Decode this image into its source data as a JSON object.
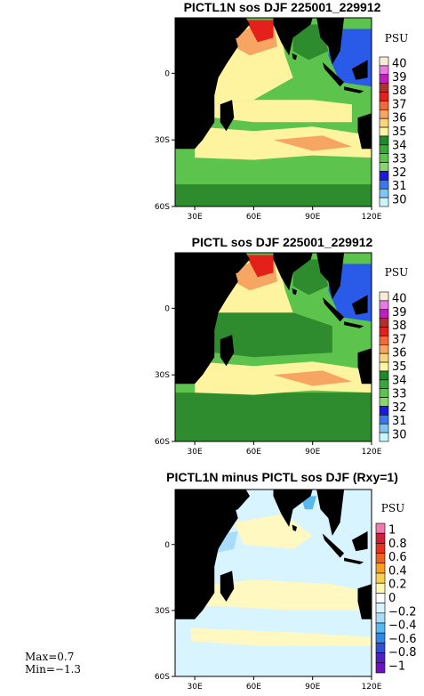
{
  "chart_data": [
    {
      "type": "heatmap",
      "title": "PICTL1N sos DJF 225001_229912",
      "unit": "PSU",
      "x_ticks": [
        "30E",
        "60E",
        "90E",
        "120E"
      ],
      "y_ticks": [
        "0",
        "30S",
        "60S"
      ],
      "colorbar_labels": [
        "40",
        "39",
        "38",
        "37",
        "36",
        "35",
        "34",
        "33",
        "32",
        "31",
        "30"
      ],
      "colorbar_colors": [
        "#f7ecd6",
        "#e87be0",
        "#c01fc0",
        "#b03030",
        "#e4201a",
        "#f06a3a",
        "#f7a562",
        "#fbd57d",
        "#fff6a4",
        "#1e8b28",
        "#38a83a",
        "#5cc44c",
        "#86d86a",
        "#1b1be0",
        "#3a78f0",
        "#7ec6f5",
        "#c9f5ff"
      ],
      "colors": {
        "land": "#000000",
        "fresh_band": "#2e8b2e",
        "mid": "#5cc44c",
        "salty": "#fef4a0",
        "high": "#f7a562",
        "max": "#e4201a"
      }
    },
    {
      "type": "heatmap",
      "title": "PICTL sos DJF 225001_229912",
      "unit": "PSU",
      "x_ticks": [
        "30E",
        "60E",
        "90E",
        "120E"
      ],
      "y_ticks": [
        "0",
        "30S",
        "60S"
      ],
      "colorbar_labels": [
        "40",
        "39",
        "38",
        "37",
        "36",
        "35",
        "34",
        "33",
        "32",
        "31",
        "30"
      ],
      "colorbar_colors": [
        "#f7ecd6",
        "#e87be0",
        "#c01fc0",
        "#b03030",
        "#e4201a",
        "#f06a3a",
        "#f7a562",
        "#fbd57d",
        "#fff6a4",
        "#1e8b28",
        "#38a83a",
        "#5cc44c",
        "#86d86a",
        "#1b1be0",
        "#3a78f0",
        "#7ec6f5",
        "#c9f5ff"
      ],
      "colors": {
        "land": "#000000",
        "fresh_band": "#2e8b2e",
        "mid": "#5cc44c",
        "salty": "#fef4a0",
        "high": "#f7a562",
        "max": "#e4201a"
      }
    },
    {
      "type": "heatmap",
      "title": "PICTL1N minus PICTL sos DJF (Rxy=1)",
      "unit": "PSU",
      "x_ticks": [
        "30E",
        "60E",
        "90E",
        "120E"
      ],
      "y_ticks": [
        "0",
        "30S",
        "60S"
      ],
      "colorbar_labels": [
        "1",
        "0.8",
        "0.6",
        "0.4",
        "0.2",
        "0",
        "−0.2",
        "−0.4",
        "−0.6",
        "−0.8",
        "−1"
      ],
      "colorbar_colors": [
        "#f07ab0",
        "#d0203a",
        "#e8301e",
        "#f0601e",
        "#f8a020",
        "#fbd050",
        "#fff8b0",
        "#ffffff",
        "#d8f4ff",
        "#a8dcf8",
        "#58b8f0",
        "#2e88e8",
        "#3050d8",
        "#5020c0",
        "#7010c0"
      ],
      "colors": {
        "land": "#000000",
        "zero": "#fff8c0",
        "neg_small": "#d8f4ff",
        "neg_mid": "#a8dcf8"
      },
      "stats": {
        "max": "Max=0.7",
        "min": "Min=−1.3"
      }
    }
  ]
}
